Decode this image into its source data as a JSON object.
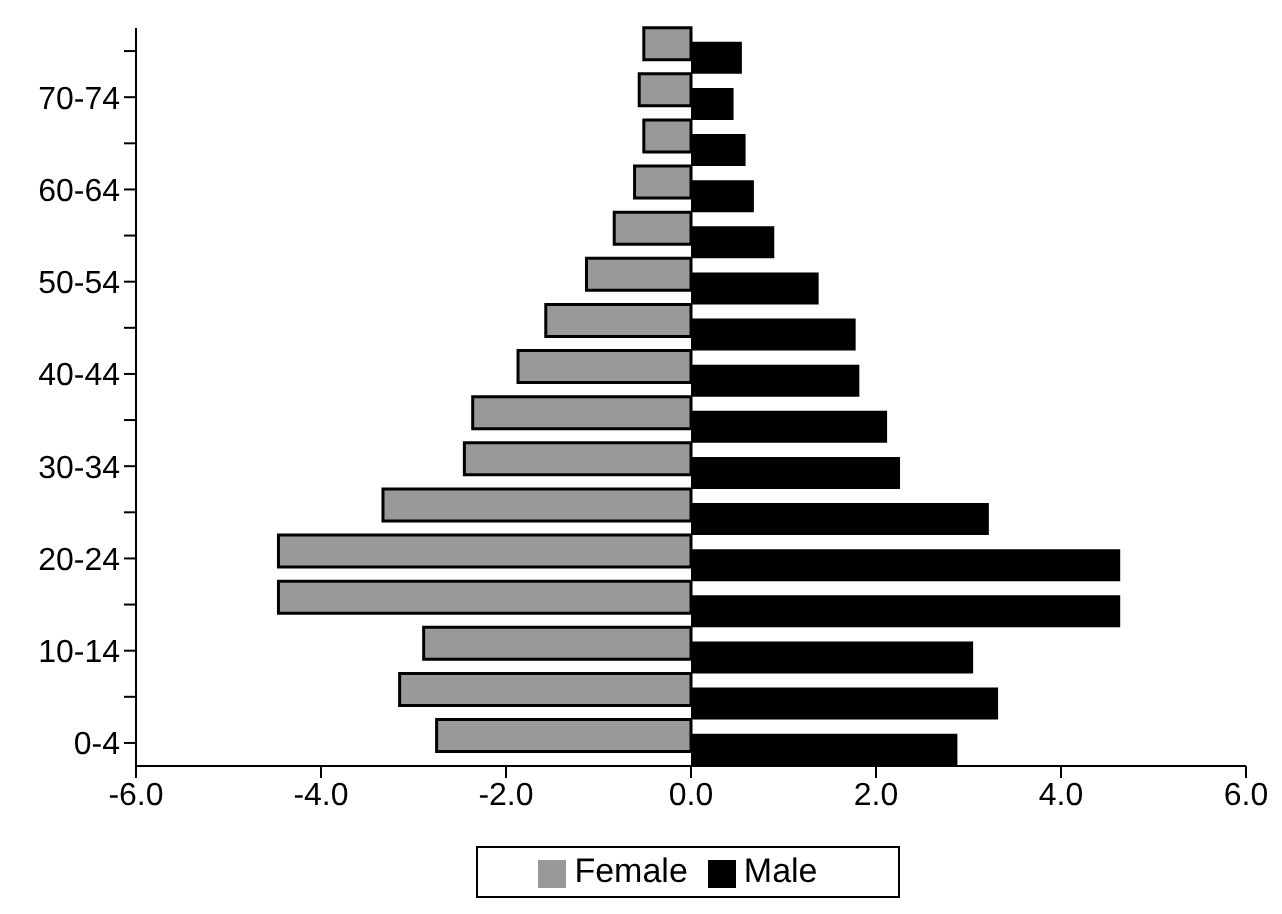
{
  "chart_data": {
    "type": "bar",
    "orientation": "horizontal",
    "categories": [
      null,
      "70-74",
      null,
      "60-64",
      null,
      "50-54",
      null,
      "40-44",
      null,
      "30-34",
      null,
      "20-24",
      null,
      "10-14",
      null,
      "0-4"
    ],
    "series": [
      {
        "name": "Male",
        "color": "#000000",
        "values": [
          0.55,
          0.46,
          0.59,
          0.68,
          0.9,
          1.38,
          1.78,
          1.82,
          2.12,
          2.26,
          3.22,
          4.64,
          4.64,
          3.05,
          3.32,
          2.88
        ]
      },
      {
        "name": "Female",
        "color": "#999999",
        "values": [
          -0.51,
          -0.56,
          -0.51,
          -0.61,
          -0.83,
          -1.13,
          -1.57,
          -1.87,
          -2.36,
          -2.45,
          -3.33,
          -4.46,
          -4.46,
          -2.89,
          -3.15,
          -2.75
        ]
      }
    ],
    "xlim": [
      -6,
      6
    ],
    "xticks": [
      {
        "value": -6,
        "label": "-6.0"
      },
      {
        "value": -4,
        "label": "-4.0"
      },
      {
        "value": -2,
        "label": "-2.0"
      },
      {
        "value": 0,
        "label": "0.0"
      },
      {
        "value": 2,
        "label": "2.0"
      },
      {
        "value": 4,
        "label": "4.0"
      },
      {
        "value": 6,
        "label": "6.0"
      }
    ],
    "legend": "bottom",
    "grid": false
  }
}
